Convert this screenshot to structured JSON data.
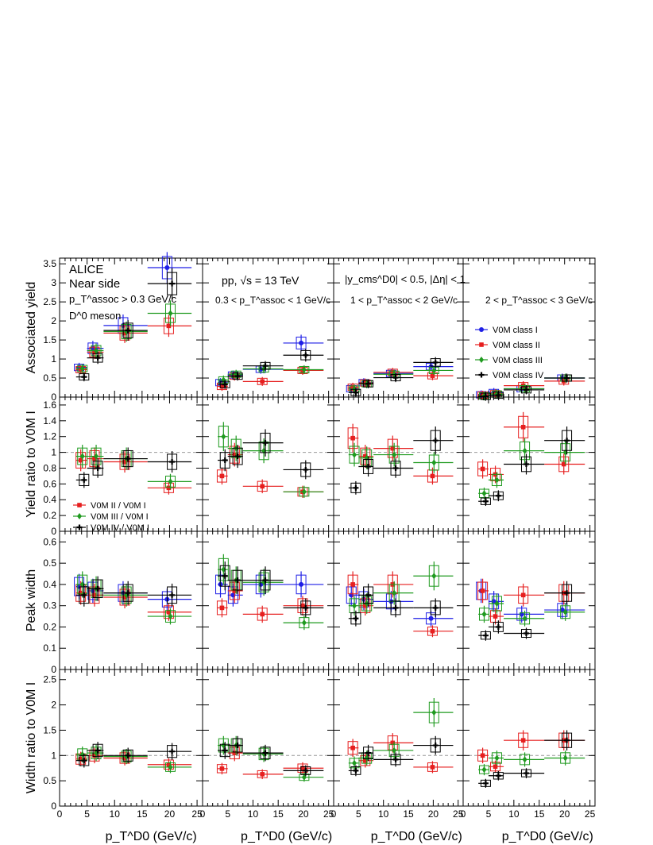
{
  "colors": {
    "class_I": "#1f1fe6",
    "class_II": "#e61f1f",
    "class_III": "#1f9a1f",
    "class_IV": "#000000",
    "reference_line": "#999999"
  },
  "annotations": {
    "p1_line1": "ALICE",
    "p1_line2": "Near side",
    "p1_line3": "p_T^assoc > 0.3 GeV/c",
    "p1_line4": "D^0 meson",
    "p2_line1": "pp, √s = 13 TeV",
    "p2_line2": "0.3 < p_T^assoc < 1 GeV/c",
    "p3_line1": "|y_cms^D0| < 0.5, |Δη| < 1",
    "p3_line2": "1 < p_T^assoc < 2 GeV/c",
    "p4_line1": "2 < p_T^assoc < 3 GeV/c"
  },
  "chart_data": {
    "type": "scatter",
    "xlabel": "p_T^D0 (GeV/c)",
    "x_ticks": [
      "0",
      "5",
      "10",
      "15",
      "20",
      "25"
    ],
    "xlim": [
      0,
      26
    ],
    "x_bins": [
      {
        "center": 4,
        "lo": 3,
        "hi": 5
      },
      {
        "center": 6.5,
        "lo": 5,
        "hi": 8
      },
      {
        "center": 12,
        "lo": 8,
        "hi": 16
      },
      {
        "center": 20,
        "lo": 16,
        "hi": 24
      }
    ],
    "legend_yield": [
      "V0M class I",
      "V0M class II",
      "V0M class III",
      "V0M class IV"
    ],
    "legend_ratio": [
      "V0M II / V0M I",
      "V0M III / V0M I",
      "V0M IV / V0M I"
    ],
    "rows": [
      {
        "ylabel": "Associated yield",
        "ylim": [
          0,
          3.65
        ],
        "y_ticks": [
          "0",
          "0.5",
          "1",
          "1.5",
          "2",
          "2.5",
          "3",
          "3.5"
        ],
        "ref_line": null,
        "panels": [
          {
            "series": [
              {
                "values": [
                  0.78,
                  1.28,
                  1.88,
                  3.4
                ]
              },
              {
                "values": [
                  0.72,
                  1.18,
                  1.68,
                  1.87
                ]
              },
              {
                "values": [
                  0.75,
                  1.22,
                  1.72,
                  2.2
                ]
              },
              {
                "values": [
                  0.53,
                  1.03,
                  1.75,
                  2.98
                ]
              }
            ]
          },
          {
            "series": [
              {
                "values": [
                  0.38,
                  0.58,
                  0.73,
                  1.42
                ]
              },
              {
                "values": [
                  0.28,
                  0.55,
                  0.41,
                  0.7
                ]
              },
              {
                "values": [
                  0.45,
                  0.6,
                  0.74,
                  0.72
                ]
              },
              {
                "values": [
                  0.33,
                  0.55,
                  0.82,
                  1.1
                ]
              }
            ]
          },
          {
            "series": [
              {
                "values": [
                  0.22,
                  0.38,
                  0.62,
                  0.8
                ]
              },
              {
                "values": [
                  0.26,
                  0.37,
                  0.65,
                  0.56
                ]
              },
              {
                "values": [
                  0.21,
                  0.35,
                  0.6,
                  0.7
                ]
              },
              {
                "values": [
                  0.12,
                  0.35,
                  0.51,
                  0.91
                ]
              }
            ]
          },
          {
            "series": [
              {
                "values": [
                  0.06,
                  0.12,
                  0.22,
                  0.5
                ]
              },
              {
                "values": [
                  0.05,
                  0.09,
                  0.3,
                  0.42
                ]
              },
              {
                "values": [
                  0.03,
                  0.08,
                  0.22,
                  0.5
                ]
              },
              {
                "values": [
                  0.02,
                  0.05,
                  0.19,
                  0.5
                ]
              }
            ]
          }
        ]
      },
      {
        "ylabel": "Yield ratio to V0M I",
        "ylim": [
          0,
          1.7
        ],
        "y_ticks": [
          "0",
          "0.2",
          "0.4",
          "0.6",
          "0.8",
          "1",
          "1.2",
          "1.4",
          "1.6"
        ],
        "ref_line": 1,
        "panels": [
          {
            "series": [
              {
                "values": [
                  0.9,
                  0.92,
                  0.88,
                  0.55
                ]
              },
              {
                "values": [
                  0.95,
                  0.95,
                  0.92,
                  0.63
                ]
              },
              {
                "values": [
                  0.65,
                  0.8,
                  0.92,
                  0.88
                ]
              }
            ]
          },
          {
            "series": [
              {
                "values": [
                  0.7,
                  0.97,
                  0.57,
                  0.5
                ]
              },
              {
                "values": [
                  1.2,
                  1.05,
                  1.02,
                  0.5
                ]
              },
              {
                "values": [
                  0.9,
                  0.95,
                  1.12,
                  0.78
                ]
              }
            ]
          },
          {
            "series": [
              {
                "values": [
                  1.18,
                  0.95,
                  1.05,
                  0.7
                ]
              },
              {
                "values": [
                  0.97,
                  0.93,
                  0.97,
                  0.87
                ]
              },
              {
                "values": [
                  0.55,
                  0.82,
                  0.8,
                  1.15
                ]
              }
            ]
          },
          {
            "series": [
              {
                "values": [
                  0.79,
                  0.72,
                  1.32,
                  0.85
                ]
              },
              {
                "values": [
                  0.48,
                  0.65,
                  1.02,
                  1.0
                ]
              },
              {
                "values": [
                  0.38,
                  0.45,
                  0.85,
                  1.15
                ]
              }
            ]
          }
        ]
      },
      {
        "ylabel": "Peak width",
        "ylim": [
          0,
          0.65
        ],
        "y_ticks": [
          "0",
          "0.1",
          "0.2",
          "0.3",
          "0.4",
          "0.5",
          "0.6"
        ],
        "ref_line": null,
        "panels": [
          {
            "series": [
              {
                "values": [
                  0.39,
                  0.37,
                  0.36,
                  0.33
                ]
              },
              {
                "values": [
                  0.36,
                  0.35,
                  0.34,
                  0.27
                ]
              },
              {
                "values": [
                  0.4,
                  0.38,
                  0.35,
                  0.25
                ]
              },
              {
                "values": [
                  0.35,
                  0.38,
                  0.36,
                  0.35
                ]
              }
            ]
          },
          {
            "series": [
              {
                "values": [
                  0.4,
                  0.35,
                  0.4,
                  0.4
                ]
              },
              {
                "values": [
                  0.29,
                  0.37,
                  0.26,
                  0.3
                ]
              },
              {
                "values": [
                  0.47,
                  0.42,
                  0.41,
                  0.22
                ]
              },
              {
                "values": [
                  0.44,
                  0.42,
                  0.42,
                  0.29
                ]
              }
            ]
          },
          {
            "series": [
              {
                "values": [
                  0.35,
                  0.33,
                  0.32,
                  0.24
                ]
              },
              {
                "values": [
                  0.4,
                  0.3,
                  0.4,
                  0.18
                ]
              },
              {
                "values": [
                  0.3,
                  0.31,
                  0.36,
                  0.44
                ]
              },
              {
                "values": [
                  0.24,
                  0.35,
                  0.29,
                  0.29
                ]
              }
            ]
          },
          {
            "series": [
              {
                "values": [
                  0.37,
                  0.32,
                  0.26,
                  0.28
                ]
              },
              {
                "values": [
                  0.37,
                  0.25,
                  0.35,
                  0.36
                ]
              },
              {
                "values": [
                  0.26,
                  0.31,
                  0.24,
                  0.27
                ]
              },
              {
                "values": [
                  0.16,
                  0.2,
                  0.17,
                  0.36
                ]
              }
            ]
          }
        ]
      },
      {
        "ylabel": "Width ratio to V0M I",
        "ylim": [
          0,
          2.7
        ],
        "y_ticks": [
          "0",
          "0.5",
          "1",
          "1.5",
          "2",
          "2.5"
        ],
        "ref_line": 1,
        "panels": [
          {
            "series": [
              {
                "values": [
                  0.93,
                  1.0,
                  0.95,
                  0.82
                ]
              },
              {
                "values": [
                  1.02,
                  1.05,
                  0.98,
                  0.77
                ]
              },
              {
                "values": [
                  0.9,
                  1.1,
                  1.0,
                  1.08
                ]
              }
            ]
          },
          {
            "series": [
              {
                "values": [
                  0.74,
                  1.05,
                  0.63,
                  0.75
                ]
              },
              {
                "values": [
                  1.2,
                  1.2,
                  1.03,
                  0.57
                ]
              },
              {
                "values": [
                  1.1,
                  1.2,
                  1.05,
                  0.7
                ]
              }
            ]
          },
          {
            "series": [
              {
                "values": [
                  1.15,
                  0.9,
                  1.25,
                  0.77
                ]
              },
              {
                "values": [
                  0.85,
                  0.95,
                  1.1,
                  1.85
                ]
              },
              {
                "values": [
                  0.7,
                  1.05,
                  0.92,
                  1.2
                ]
              }
            ]
          },
          {
            "series": [
              {
                "values": [
                  1.0,
                  0.78,
                  1.3,
                  1.3
                ]
              },
              {
                "values": [
                  0.72,
                  0.95,
                  0.92,
                  0.95
                ]
              },
              {
                "values": [
                  0.45,
                  0.6,
                  0.65,
                  1.3
                ]
              }
            ]
          }
        ]
      }
    ]
  }
}
